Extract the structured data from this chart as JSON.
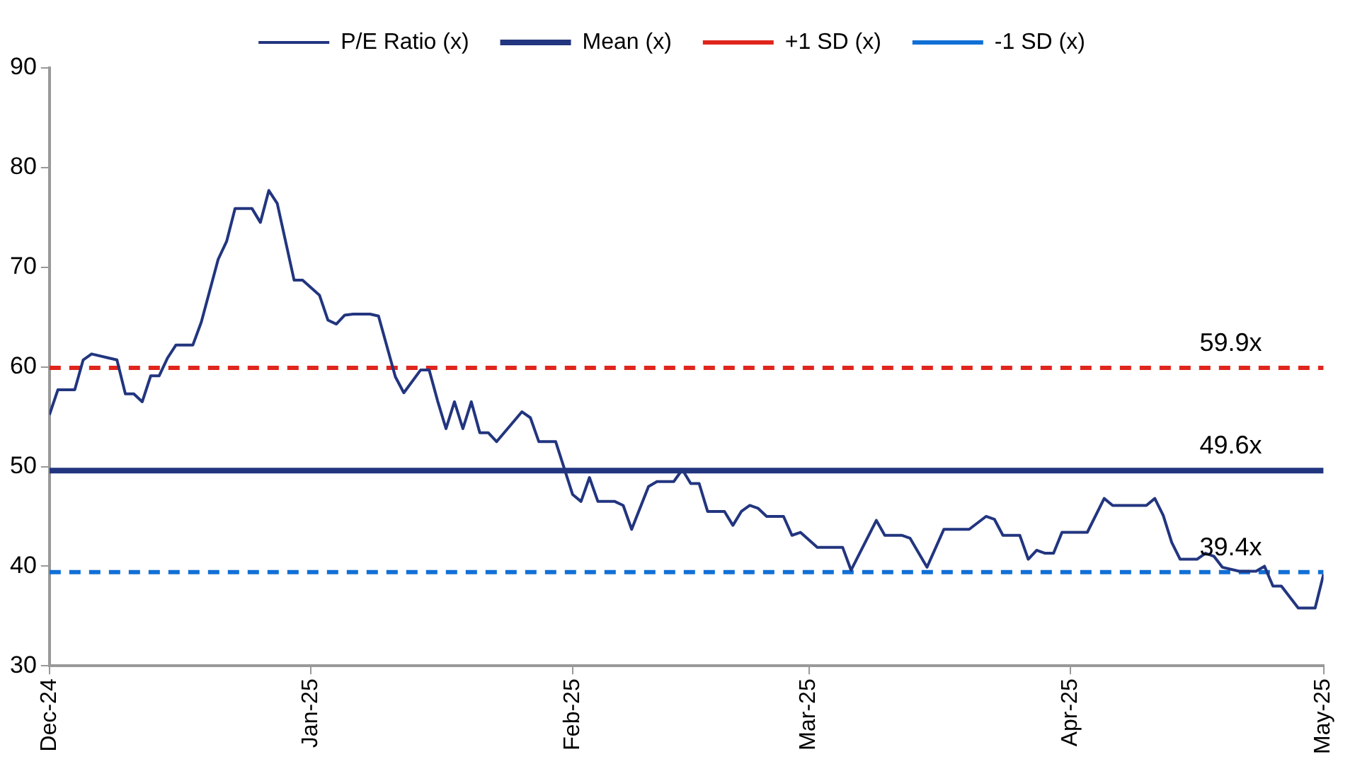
{
  "chart_data": {
    "type": "line",
    "legend": "top",
    "grid": false,
    "marker": "none",
    "xlim": [
      "2024-12-01",
      "2025-05-01"
    ],
    "xticks": [
      {
        "value": "2024-12-01",
        "label": "Dec-24"
      },
      {
        "value": "2025-01-01",
        "label": "Jan-25"
      },
      {
        "value": "2025-02-01",
        "label": "Feb-25"
      },
      {
        "value": "2025-03-01",
        "label": "Mar-25"
      },
      {
        "value": "2025-04-01",
        "label": "Apr-25"
      },
      {
        "value": "2025-05-01",
        "label": "May-25"
      }
    ],
    "ylim": [
      30,
      90
    ],
    "yticks": [
      30,
      40,
      50,
      60,
      70,
      80,
      90
    ],
    "series": [
      {
        "name": "P/E Ratio (x)",
        "color": "#22357f",
        "line_style": "solid",
        "x": [
          "2024-12-01",
          "2024-12-02",
          "2024-12-04",
          "2024-12-05",
          "2024-12-06",
          "2024-12-08",
          "2024-12-09",
          "2024-12-10",
          "2024-12-11",
          "2024-12-12",
          "2024-12-13",
          "2024-12-14",
          "2024-12-15",
          "2024-12-16",
          "2024-12-18",
          "2024-12-19",
          "2024-12-21",
          "2024-12-22",
          "2024-12-23",
          "2024-12-25",
          "2024-12-26",
          "2024-12-27",
          "2024-12-28",
          "2024-12-30",
          "2024-12-31",
          "2025-01-02",
          "2025-01-03",
          "2025-01-04",
          "2025-01-05",
          "2025-01-06",
          "2025-01-08",
          "2025-01-09",
          "2025-01-11",
          "2025-01-12",
          "2025-01-14",
          "2025-01-15",
          "2025-01-16",
          "2025-01-17",
          "2025-01-18",
          "2025-01-19",
          "2025-01-20",
          "2025-01-21",
          "2025-01-22",
          "2025-01-23",
          "2025-01-26",
          "2025-01-27",
          "2025-01-28",
          "2025-01-30",
          "2025-02-01",
          "2025-02-02",
          "2025-02-03",
          "2025-02-04",
          "2025-02-06",
          "2025-02-07",
          "2025-02-08",
          "2025-02-10",
          "2025-02-11",
          "2025-02-13",
          "2025-02-14",
          "2025-02-15",
          "2025-02-16",
          "2025-02-17",
          "2025-02-19",
          "2025-02-20",
          "2025-02-21",
          "2025-02-22",
          "2025-02-23",
          "2025-02-24",
          "2025-02-26",
          "2025-02-27",
          "2025-02-28",
          "2025-03-02",
          "2025-03-05",
          "2025-03-06",
          "2025-03-09",
          "2025-03-10",
          "2025-03-12",
          "2025-03-13",
          "2025-03-15",
          "2025-03-17",
          "2025-03-20",
          "2025-03-22",
          "2025-03-23",
          "2025-03-24",
          "2025-03-26",
          "2025-03-27",
          "2025-03-28",
          "2025-03-29",
          "2025-03-30",
          "2025-03-31",
          "2025-04-03",
          "2025-04-05",
          "2025-04-06",
          "2025-04-10",
          "2025-04-11",
          "2025-04-12",
          "2025-04-13",
          "2025-04-14",
          "2025-04-16",
          "2025-04-17",
          "2025-04-18",
          "2025-04-19",
          "2025-04-21",
          "2025-04-23",
          "2025-04-24",
          "2025-04-25",
          "2025-04-26",
          "2025-04-28",
          "2025-04-30",
          "2025-05-01"
        ],
        "values": [
          55.2,
          57.7,
          57.7,
          60.7,
          61.3,
          60.9,
          60.7,
          57.3,
          57.3,
          56.5,
          59.1,
          59.1,
          60.9,
          62.2,
          62.2,
          64.5,
          70.8,
          72.6,
          75.9,
          75.9,
          74.5,
          77.7,
          76.4,
          68.7,
          68.7,
          67.2,
          64.7,
          64.3,
          65.2,
          65.3,
          65.3,
          65.1,
          59.0,
          57.4,
          59.7,
          59.7,
          56.6,
          53.8,
          56.5,
          53.8,
          56.5,
          53.4,
          53.4,
          52.5,
          55.5,
          54.9,
          52.5,
          52.5,
          47.2,
          46.5,
          48.9,
          46.5,
          46.5,
          46.1,
          43.7,
          48.0,
          48.5,
          48.5,
          49.7,
          48.3,
          48.3,
          45.5,
          45.5,
          44.1,
          45.5,
          46.1,
          45.8,
          45.0,
          45.0,
          43.1,
          43.4,
          41.9,
          41.9,
          39.6,
          44.6,
          43.1,
          43.1,
          42.8,
          39.9,
          43.7,
          43.7,
          45.0,
          44.7,
          43.1,
          43.1,
          40.7,
          41.6,
          41.3,
          41.3,
          43.4,
          43.4,
          46.8,
          46.1,
          46.1,
          46.8,
          45.1,
          42.4,
          40.7,
          40.7,
          41.3,
          41.0,
          39.9,
          39.5,
          39.5,
          40.0,
          38.0,
          38.0,
          35.8,
          35.8,
          39.2
        ]
      },
      {
        "name": "Mean (x)",
        "color": "#22357f",
        "line_style": "solid",
        "x": [
          "2024-12-01",
          "2025-05-01"
        ],
        "values": [
          49.6,
          49.6
        ]
      },
      {
        "name": "+1 SD (x)",
        "color": "#e0251c",
        "line_style": "dashed",
        "x": [
          "2024-12-01",
          "2025-05-01"
        ],
        "values": [
          59.9,
          59.9
        ]
      },
      {
        "name": "-1 SD (x)",
        "color": "#1170d6",
        "line_style": "dashed",
        "x": [
          "2024-12-01",
          "2025-05-01"
        ],
        "values": [
          39.4,
          39.4
        ]
      }
    ],
    "annotations": [
      {
        "text": "59.9x",
        "x": "2025-04-20",
        "y": 59.9
      },
      {
        "text": "49.6x",
        "x": "2025-04-20",
        "y": 49.6
      },
      {
        "text": "39.4x",
        "x": "2025-04-20",
        "y": 39.4
      }
    ]
  }
}
